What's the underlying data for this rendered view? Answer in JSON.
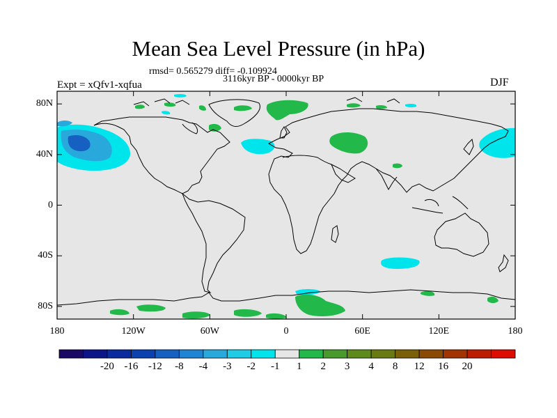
{
  "title": "Mean Sea Level Pressure (in hPa)",
  "stats": {
    "text": "rmsd= 0.565279  diff= -0.109924"
  },
  "period": "3116kyr BP - 0000kyr BP",
  "experiment": "Expt = xQfv1-xqfua",
  "season": "DJF",
  "map": {
    "land_color": "#e6e6e6",
    "lat_ticks": [
      {
        "lat": 80,
        "label": "80N"
      },
      {
        "lat": 40,
        "label": "40N"
      },
      {
        "lat": 0,
        "label": "0"
      },
      {
        "lat": -40,
        "label": "40S"
      },
      {
        "lat": -80,
        "label": "80S"
      }
    ],
    "lon_ticks": [
      {
        "lon": -180,
        "label": "180"
      },
      {
        "lon": -120,
        "label": "120W"
      },
      {
        "lon": -60,
        "label": "60W"
      },
      {
        "lon": 0,
        "label": "0"
      },
      {
        "lon": 60,
        "label": "60E"
      },
      {
        "lon": 120,
        "label": "120E"
      },
      {
        "lon": 180,
        "label": "180"
      }
    ]
  },
  "colorbar": {
    "colors": [
      "#1b0a64",
      "#0c1587",
      "#0a2a9e",
      "#0c41b0",
      "#1660c2",
      "#1f84d2",
      "#29a8dc",
      "#20cbe6",
      "#00e5ec",
      "#e6e6e6",
      "#22b94a",
      "#489a2d",
      "#5e8a1c",
      "#6a7a12",
      "#7a6008",
      "#8b4a04",
      "#a23403",
      "#bc1d02",
      "#dc0e02"
    ],
    "labels": [
      "-20",
      "-16",
      "-12",
      "-8",
      "-4",
      "-3",
      "-2",
      "-1",
      "1",
      "2",
      "3",
      "4",
      "8",
      "12",
      "16",
      "20"
    ]
  }
}
